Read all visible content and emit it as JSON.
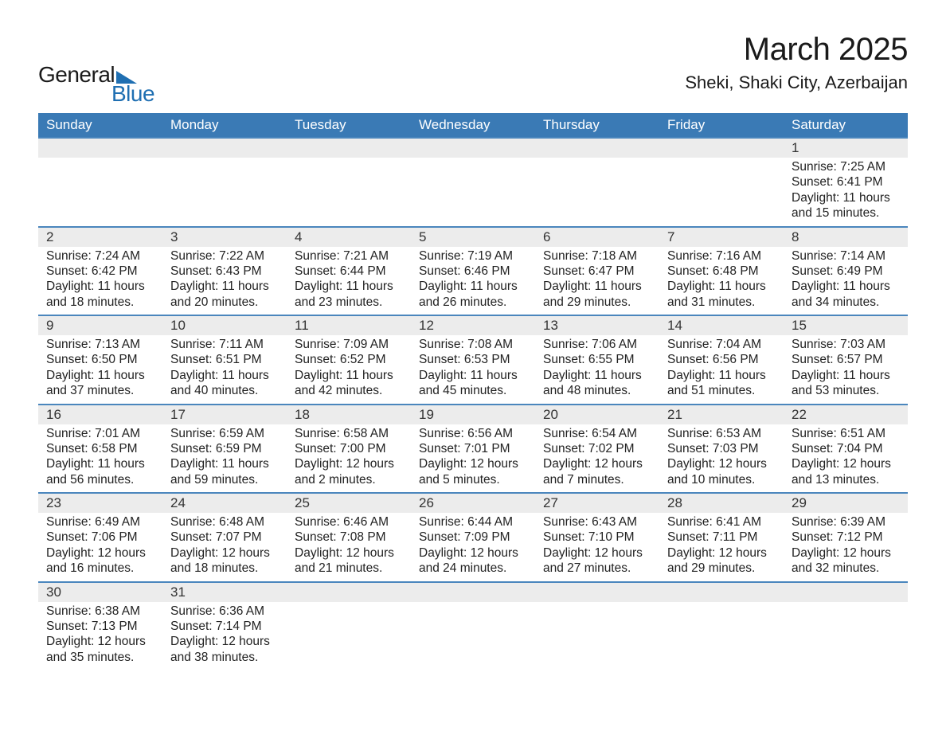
{
  "logo": {
    "text1": "General",
    "text2": "Blue"
  },
  "title": "March 2025",
  "location": "Sheki, Shaki City, Azerbaijan",
  "colors": {
    "header_bg": "#3a7ab5",
    "header_text": "#ffffff",
    "row_divider": "#4a86bd",
    "daynum_bg": "#ececec",
    "logo_accent": "#1f6fb2",
    "text": "#222222",
    "background": "#ffffff"
  },
  "fonts": {
    "family": "Arial",
    "title_size": 40,
    "location_size": 22,
    "header_size": 17,
    "cell_size": 15.5
  },
  "days_of_week": [
    "Sunday",
    "Monday",
    "Tuesday",
    "Wednesday",
    "Thursday",
    "Friday",
    "Saturday"
  ],
  "weeks": [
    [
      null,
      null,
      null,
      null,
      null,
      null,
      {
        "n": "1",
        "sr": "Sunrise: 7:25 AM",
        "ss": "Sunset: 6:41 PM",
        "d1": "Daylight: 11 hours",
        "d2": "and 15 minutes."
      }
    ],
    [
      {
        "n": "2",
        "sr": "Sunrise: 7:24 AM",
        "ss": "Sunset: 6:42 PM",
        "d1": "Daylight: 11 hours",
        "d2": "and 18 minutes."
      },
      {
        "n": "3",
        "sr": "Sunrise: 7:22 AM",
        "ss": "Sunset: 6:43 PM",
        "d1": "Daylight: 11 hours",
        "d2": "and 20 minutes."
      },
      {
        "n": "4",
        "sr": "Sunrise: 7:21 AM",
        "ss": "Sunset: 6:44 PM",
        "d1": "Daylight: 11 hours",
        "d2": "and 23 minutes."
      },
      {
        "n": "5",
        "sr": "Sunrise: 7:19 AM",
        "ss": "Sunset: 6:46 PM",
        "d1": "Daylight: 11 hours",
        "d2": "and 26 minutes."
      },
      {
        "n": "6",
        "sr": "Sunrise: 7:18 AM",
        "ss": "Sunset: 6:47 PM",
        "d1": "Daylight: 11 hours",
        "d2": "and 29 minutes."
      },
      {
        "n": "7",
        "sr": "Sunrise: 7:16 AM",
        "ss": "Sunset: 6:48 PM",
        "d1": "Daylight: 11 hours",
        "d2": "and 31 minutes."
      },
      {
        "n": "8",
        "sr": "Sunrise: 7:14 AM",
        "ss": "Sunset: 6:49 PM",
        "d1": "Daylight: 11 hours",
        "d2": "and 34 minutes."
      }
    ],
    [
      {
        "n": "9",
        "sr": "Sunrise: 7:13 AM",
        "ss": "Sunset: 6:50 PM",
        "d1": "Daylight: 11 hours",
        "d2": "and 37 minutes."
      },
      {
        "n": "10",
        "sr": "Sunrise: 7:11 AM",
        "ss": "Sunset: 6:51 PM",
        "d1": "Daylight: 11 hours",
        "d2": "and 40 minutes."
      },
      {
        "n": "11",
        "sr": "Sunrise: 7:09 AM",
        "ss": "Sunset: 6:52 PM",
        "d1": "Daylight: 11 hours",
        "d2": "and 42 minutes."
      },
      {
        "n": "12",
        "sr": "Sunrise: 7:08 AM",
        "ss": "Sunset: 6:53 PM",
        "d1": "Daylight: 11 hours",
        "d2": "and 45 minutes."
      },
      {
        "n": "13",
        "sr": "Sunrise: 7:06 AM",
        "ss": "Sunset: 6:55 PM",
        "d1": "Daylight: 11 hours",
        "d2": "and 48 minutes."
      },
      {
        "n": "14",
        "sr": "Sunrise: 7:04 AM",
        "ss": "Sunset: 6:56 PM",
        "d1": "Daylight: 11 hours",
        "d2": "and 51 minutes."
      },
      {
        "n": "15",
        "sr": "Sunrise: 7:03 AM",
        "ss": "Sunset: 6:57 PM",
        "d1": "Daylight: 11 hours",
        "d2": "and 53 minutes."
      }
    ],
    [
      {
        "n": "16",
        "sr": "Sunrise: 7:01 AM",
        "ss": "Sunset: 6:58 PM",
        "d1": "Daylight: 11 hours",
        "d2": "and 56 minutes."
      },
      {
        "n": "17",
        "sr": "Sunrise: 6:59 AM",
        "ss": "Sunset: 6:59 PM",
        "d1": "Daylight: 11 hours",
        "d2": "and 59 minutes."
      },
      {
        "n": "18",
        "sr": "Sunrise: 6:58 AM",
        "ss": "Sunset: 7:00 PM",
        "d1": "Daylight: 12 hours",
        "d2": "and 2 minutes."
      },
      {
        "n": "19",
        "sr": "Sunrise: 6:56 AM",
        "ss": "Sunset: 7:01 PM",
        "d1": "Daylight: 12 hours",
        "d2": "and 5 minutes."
      },
      {
        "n": "20",
        "sr": "Sunrise: 6:54 AM",
        "ss": "Sunset: 7:02 PM",
        "d1": "Daylight: 12 hours",
        "d2": "and 7 minutes."
      },
      {
        "n": "21",
        "sr": "Sunrise: 6:53 AM",
        "ss": "Sunset: 7:03 PM",
        "d1": "Daylight: 12 hours",
        "d2": "and 10 minutes."
      },
      {
        "n": "22",
        "sr": "Sunrise: 6:51 AM",
        "ss": "Sunset: 7:04 PM",
        "d1": "Daylight: 12 hours",
        "d2": "and 13 minutes."
      }
    ],
    [
      {
        "n": "23",
        "sr": "Sunrise: 6:49 AM",
        "ss": "Sunset: 7:06 PM",
        "d1": "Daylight: 12 hours",
        "d2": "and 16 minutes."
      },
      {
        "n": "24",
        "sr": "Sunrise: 6:48 AM",
        "ss": "Sunset: 7:07 PM",
        "d1": "Daylight: 12 hours",
        "d2": "and 18 minutes."
      },
      {
        "n": "25",
        "sr": "Sunrise: 6:46 AM",
        "ss": "Sunset: 7:08 PM",
        "d1": "Daylight: 12 hours",
        "d2": "and 21 minutes."
      },
      {
        "n": "26",
        "sr": "Sunrise: 6:44 AM",
        "ss": "Sunset: 7:09 PM",
        "d1": "Daylight: 12 hours",
        "d2": "and 24 minutes."
      },
      {
        "n": "27",
        "sr": "Sunrise: 6:43 AM",
        "ss": "Sunset: 7:10 PM",
        "d1": "Daylight: 12 hours",
        "d2": "and 27 minutes."
      },
      {
        "n": "28",
        "sr": "Sunrise: 6:41 AM",
        "ss": "Sunset: 7:11 PM",
        "d1": "Daylight: 12 hours",
        "d2": "and 29 minutes."
      },
      {
        "n": "29",
        "sr": "Sunrise: 6:39 AM",
        "ss": "Sunset: 7:12 PM",
        "d1": "Daylight: 12 hours",
        "d2": "and 32 minutes."
      }
    ],
    [
      {
        "n": "30",
        "sr": "Sunrise: 6:38 AM",
        "ss": "Sunset: 7:13 PM",
        "d1": "Daylight: 12 hours",
        "d2": "and 35 minutes."
      },
      {
        "n": "31",
        "sr": "Sunrise: 6:36 AM",
        "ss": "Sunset: 7:14 PM",
        "d1": "Daylight: 12 hours",
        "d2": "and 38 minutes."
      },
      null,
      null,
      null,
      null,
      null
    ]
  ]
}
